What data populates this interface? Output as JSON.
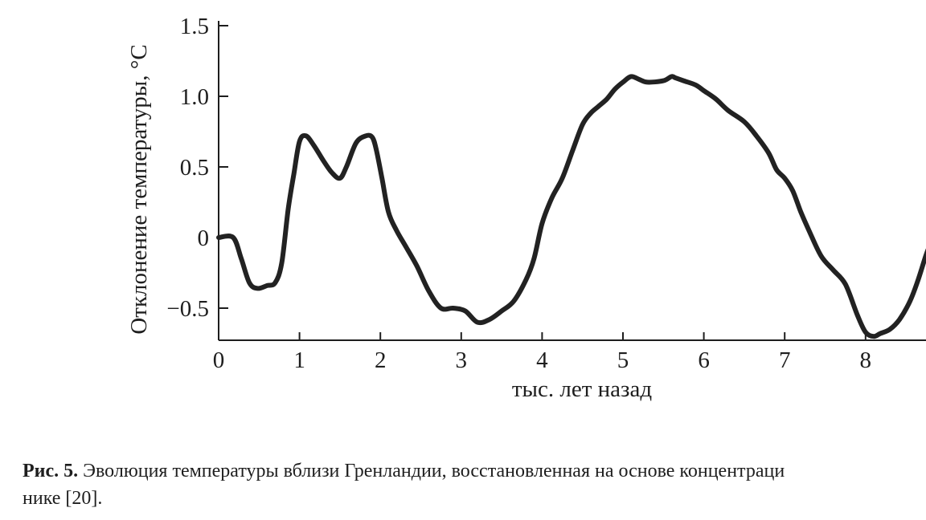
{
  "chart_data": {
    "type": "line",
    "xlabel": "тыс. лет назад",
    "ylabel": "Отклонение температуры, °C",
    "xlim": [
      0,
      8.8
    ],
    "ylim": [
      -0.72,
      1.5
    ],
    "x_ticks": [
      0,
      1,
      2,
      3,
      4,
      5,
      6,
      7,
      8
    ],
    "x_tick_labels": [
      "0",
      "1",
      "2",
      "3",
      "4",
      "5",
      "6",
      "7",
      "8"
    ],
    "y_ticks": [
      1.5,
      1.0,
      0.5,
      0,
      -0.5
    ],
    "y_tick_labels": [
      "1.5",
      "1.0",
      "0.5",
      "0",
      "−0.5"
    ],
    "grid": false,
    "series": [
      {
        "color": "#222222",
        "x": [
          0,
          0.18,
          0.28,
          0.38,
          0.48,
          0.6,
          0.7,
          0.78,
          0.86,
          0.93,
          1.0,
          1.08,
          1.18,
          1.3,
          1.4,
          1.5,
          1.58,
          1.7,
          1.82,
          1.9,
          1.95,
          2.02,
          2.1,
          2.2,
          2.3,
          2.45,
          2.6,
          2.75,
          2.9,
          3.05,
          3.2,
          3.35,
          3.5,
          3.65,
          3.8,
          3.9,
          4.0,
          4.12,
          4.25,
          4.38,
          4.5,
          4.6,
          4.7,
          4.8,
          4.9,
          5.0,
          5.1,
          5.2,
          5.3,
          5.5,
          5.6,
          5.65,
          5.75,
          5.9,
          6.0,
          6.15,
          6.3,
          6.5,
          6.65,
          6.8,
          6.9,
          7.0,
          7.1,
          7.2,
          7.3,
          7.45,
          7.6,
          7.75,
          7.9,
          8.0,
          8.1,
          8.18,
          8.3,
          8.42,
          8.55,
          8.65,
          8.75,
          8.8
        ],
        "y": [
          0.0,
          0.0,
          -0.15,
          -0.32,
          -0.36,
          -0.34,
          -0.32,
          -0.18,
          0.2,
          0.45,
          0.68,
          0.72,
          0.65,
          0.54,
          0.46,
          0.42,
          0.5,
          0.67,
          0.72,
          0.71,
          0.62,
          0.42,
          0.18,
          0.05,
          -0.05,
          -0.2,
          -0.38,
          -0.5,
          -0.5,
          -0.52,
          -0.6,
          -0.58,
          -0.52,
          -0.45,
          -0.3,
          -0.15,
          0.1,
          0.28,
          0.42,
          0.62,
          0.8,
          0.88,
          0.93,
          0.98,
          1.05,
          1.1,
          1.14,
          1.12,
          1.1,
          1.11,
          1.14,
          1.13,
          1.11,
          1.08,
          1.04,
          0.98,
          0.9,
          0.82,
          0.72,
          0.6,
          0.48,
          0.42,
          0.33,
          0.18,
          0.05,
          -0.13,
          -0.23,
          -0.33,
          -0.55,
          -0.67,
          -0.7,
          -0.68,
          -0.65,
          -0.58,
          -0.45,
          -0.3,
          -0.12,
          -0.05
        ]
      }
    ]
  },
  "caption": {
    "prefix": "Рис. 5.",
    "text": " Эволюция температуры вблизи Гренландии, восстановленная на основе концентраци",
    "line2": "нике [20]."
  }
}
